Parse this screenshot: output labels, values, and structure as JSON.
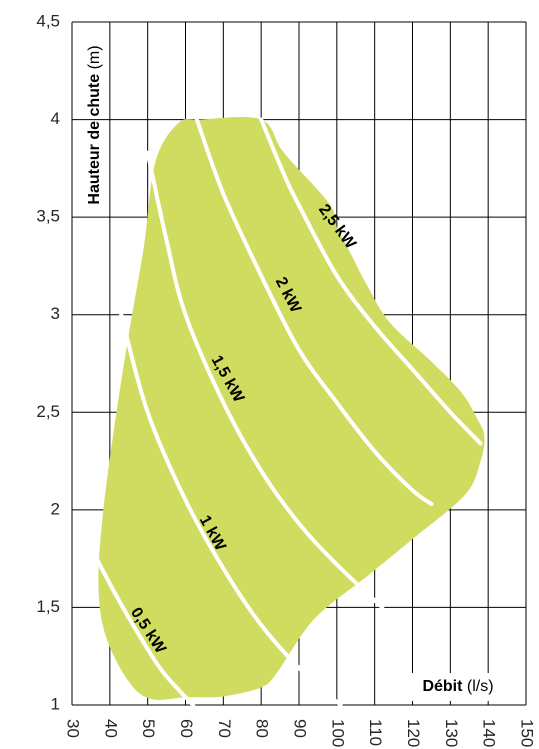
{
  "chart_data": {
    "type": "area",
    "x_axis": {
      "label_bold": "Débit",
      "label_unit": "(l/s)",
      "ticks": [
        "30",
        "40",
        "50",
        "60",
        "70",
        "80",
        "90",
        "100",
        "110",
        "120",
        "130",
        "140",
        "150"
      ],
      "range": [
        30,
        150
      ]
    },
    "y_axis": {
      "label_bold": "Hauteur de chute",
      "label_unit": "(m)",
      "ticks": [
        "1",
        "1,5",
        "2",
        "2,5",
        "3",
        "3,5",
        "4",
        "4,5"
      ],
      "range": [
        1,
        4.5
      ]
    },
    "grid": true,
    "colors": {
      "region_fill": "#cfdc5f",
      "curves": "#ffffff"
    },
    "region": {
      "x": [
        51,
        45,
        39,
        37,
        38,
        41,
        45,
        49,
        52,
        58,
        64,
        80,
        86,
        98,
        100,
        104,
        108,
        114,
        125,
        133,
        137,
        139,
        138,
        134,
        120,
        108,
        94,
        84,
        80,
        72,
        67,
        60
      ],
      "y": [
        1.03,
        1.12,
        1.35,
        1.6,
        1.95,
        2.4,
        2.9,
        3.35,
        3.78,
        3.98,
        4.0,
        4.0,
        3.83,
        3.57,
        3.45,
        3.3,
        3.15,
        2.96,
        2.76,
        2.6,
        2.47,
        2.38,
        2.25,
        2.08,
        1.85,
        1.66,
        1.44,
        1.16,
        1.09,
        1.05,
        1.04,
        1.04
      ]
    },
    "series": [
      {
        "name": "0,5 kW",
        "x": [
          36.5,
          42,
          48,
          54,
          62
        ],
        "y": [
          1.75,
          1.55,
          1.35,
          1.17,
          1.0
        ]
      },
      {
        "name": "1 kW",
        "x": [
          43,
          50,
          60,
          70,
          80,
          92,
          101
        ],
        "y": [
          3.0,
          2.5,
          2.05,
          1.7,
          1.41,
          1.15,
          1.0
        ]
      },
      {
        "name": "1,5 kW",
        "x": [
          50,
          55,
          60,
          70,
          80,
          90,
          100,
          112
        ],
        "y": [
          3.83,
          3.38,
          3.0,
          2.55,
          2.2,
          1.93,
          1.72,
          1.5
        ]
      },
      {
        "name": "2 kW",
        "x": [
          63,
          70,
          80,
          90,
          100,
          110,
          120,
          125
        ],
        "y": [
          4.0,
          3.62,
          3.2,
          2.82,
          2.55,
          2.3,
          2.1,
          2.03
        ]
      },
      {
        "name": "2,5 kW",
        "x": [
          80,
          86,
          90,
          100,
          110,
          120,
          130,
          138
        ],
        "y": [
          4.0,
          3.72,
          3.56,
          3.2,
          2.94,
          2.72,
          2.5,
          2.34
        ]
      }
    ]
  }
}
